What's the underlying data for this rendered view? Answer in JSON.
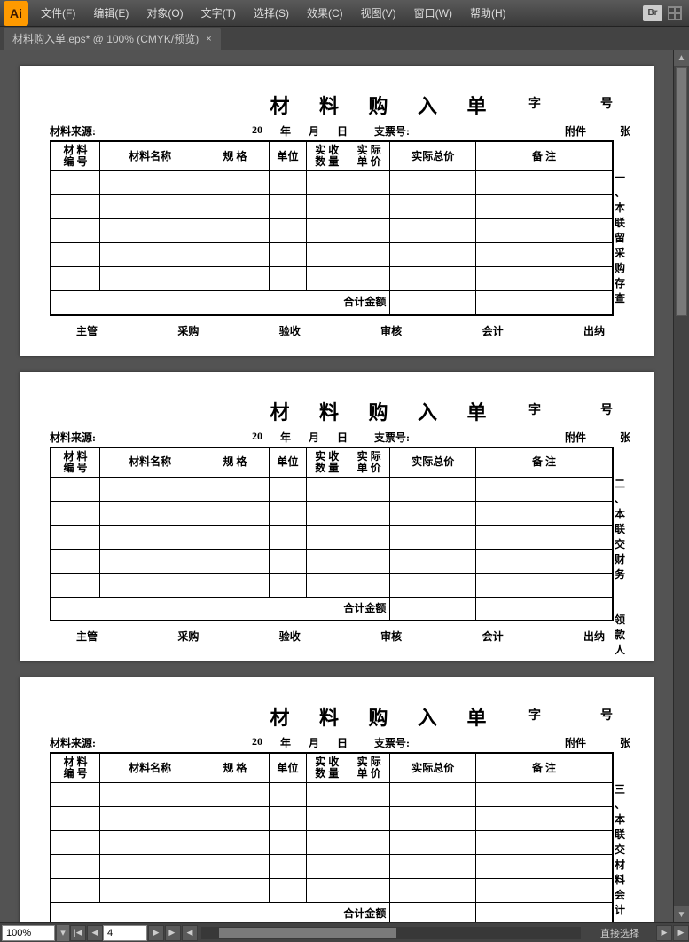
{
  "app": {
    "icon_label": "Ai"
  },
  "menu": {
    "file": "文件(F)",
    "edit": "编辑(E)",
    "object": "对象(O)",
    "type": "文字(T)",
    "select": "选择(S)",
    "effect": "效果(C)",
    "view": "视图(V)",
    "window": "窗口(W)",
    "help": "帮助(H)",
    "br": "Br"
  },
  "tab": {
    "title": "材料购入单.eps* @ 100% (CMYK/预览)",
    "close": "×"
  },
  "form": {
    "title": "材 料 购 入 单",
    "zi": "字",
    "hao": "号",
    "source_label": "材料来源:",
    "year_prefix": "20",
    "year": "年",
    "month": "月",
    "day": "日",
    "invoice_label": "支票号:",
    "attach_label": "附件",
    "zhang": "张",
    "cols": {
      "code": "材 料\n编 号",
      "name": "材料名称",
      "spec": "规 格",
      "unit": "单位",
      "qty": "实 收\n数 量",
      "price": "实 际\n单 价",
      "total": "实际总价",
      "remark": "备        注"
    },
    "total_money": "合计金额",
    "sigs": {
      "mgr": "主管",
      "buy": "采购",
      "chk": "验收",
      "aud": "审核",
      "acc": "会计",
      "cash": "出纳"
    },
    "notes": {
      "one": "一、本联留采购存查",
      "two": "二、本联交财务  领款人",
      "three": "三、本联交材料会计"
    }
  },
  "status": {
    "zoom": "100%",
    "page": "4",
    "center_tool": "直接选择"
  },
  "arrows": {
    "up": "▲",
    "down": "▼",
    "left": "◀",
    "right": "▶",
    "first": "|◀",
    "last": "▶|",
    "dd": "▾"
  }
}
